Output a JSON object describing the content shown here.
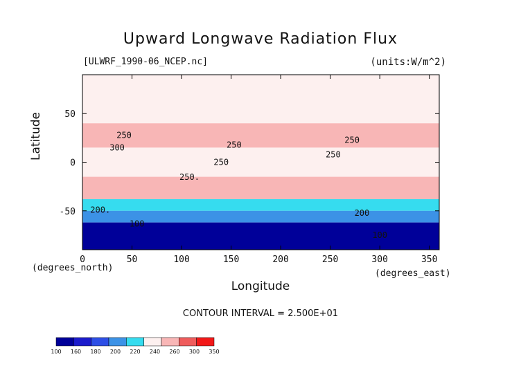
{
  "chart_data": {
    "type": "heatmap",
    "title": "Upward Longwave Radiation Flux",
    "subtitle_left": "[ULWRF_1990-06_NCEP.nc]",
    "subtitle_right": "(units:W/m^2)",
    "xlabel": "Longitude",
    "ylabel": "Latitude",
    "x_unit_note": "(degrees_east)",
    "y_unit_note": "(degrees_north)",
    "xlim": [
      0,
      360
    ],
    "ylim": [
      -90,
      90
    ],
    "x_ticks": [
      0,
      50,
      100,
      150,
      200,
      250,
      300,
      350
    ],
    "y_ticks": [
      -50,
      0,
      50
    ],
    "contour_interval_text": "CONTOUR INTERVAL = 2.500E+01",
    "contour_labels": [
      {
        "text": "250",
        "lon": 42,
        "lat": 25
      },
      {
        "text": "300",
        "lon": 35,
        "lat": 12
      },
      {
        "text": "250",
        "lon": 153,
        "lat": 15
      },
      {
        "text": "250",
        "lon": 140,
        "lat": -3
      },
      {
        "text": "250.",
        "lon": 108,
        "lat": -18
      },
      {
        "text": "250",
        "lon": 253,
        "lat": 5
      },
      {
        "text": "250",
        "lon": 272,
        "lat": 20
      },
      {
        "text": "200.",
        "lon": 18,
        "lat": -52
      },
      {
        "text": "200",
        "lon": 282,
        "lat": -55
      },
      {
        "text": "100",
        "lon": 55,
        "lat": -66
      },
      {
        "text": "100",
        "lon": 300,
        "lat": -78
      }
    ],
    "colorbar": {
      "labels": [
        "100",
        "160",
        "180",
        "200",
        "220",
        "240",
        "260",
        "300",
        "350"
      ],
      "colors": [
        "#000099",
        "#1b1bcc",
        "#2e4fe6",
        "#3c92e6",
        "#36dcef",
        "#fdf0ef",
        "#f8b6b6",
        "#ef5c5c",
        "#f21818"
      ]
    },
    "bands": [
      {
        "lat": [
          60,
          90
        ],
        "value": 240
      },
      {
        "lat": [
          40,
          60
        ],
        "value": 250
      },
      {
        "lat": [
          15,
          40
        ],
        "value": 270
      },
      {
        "lat": [
          -15,
          15
        ],
        "value": 250
      },
      {
        "lat": [
          -38,
          -15
        ],
        "value": 280
      },
      {
        "lat": [
          -50,
          -38
        ],
        "value": 230
      },
      {
        "lat": [
          -62,
          -50
        ],
        "value": 200
      },
      {
        "lat": [
          -90,
          -62
        ],
        "value": 140
      }
    ]
  }
}
